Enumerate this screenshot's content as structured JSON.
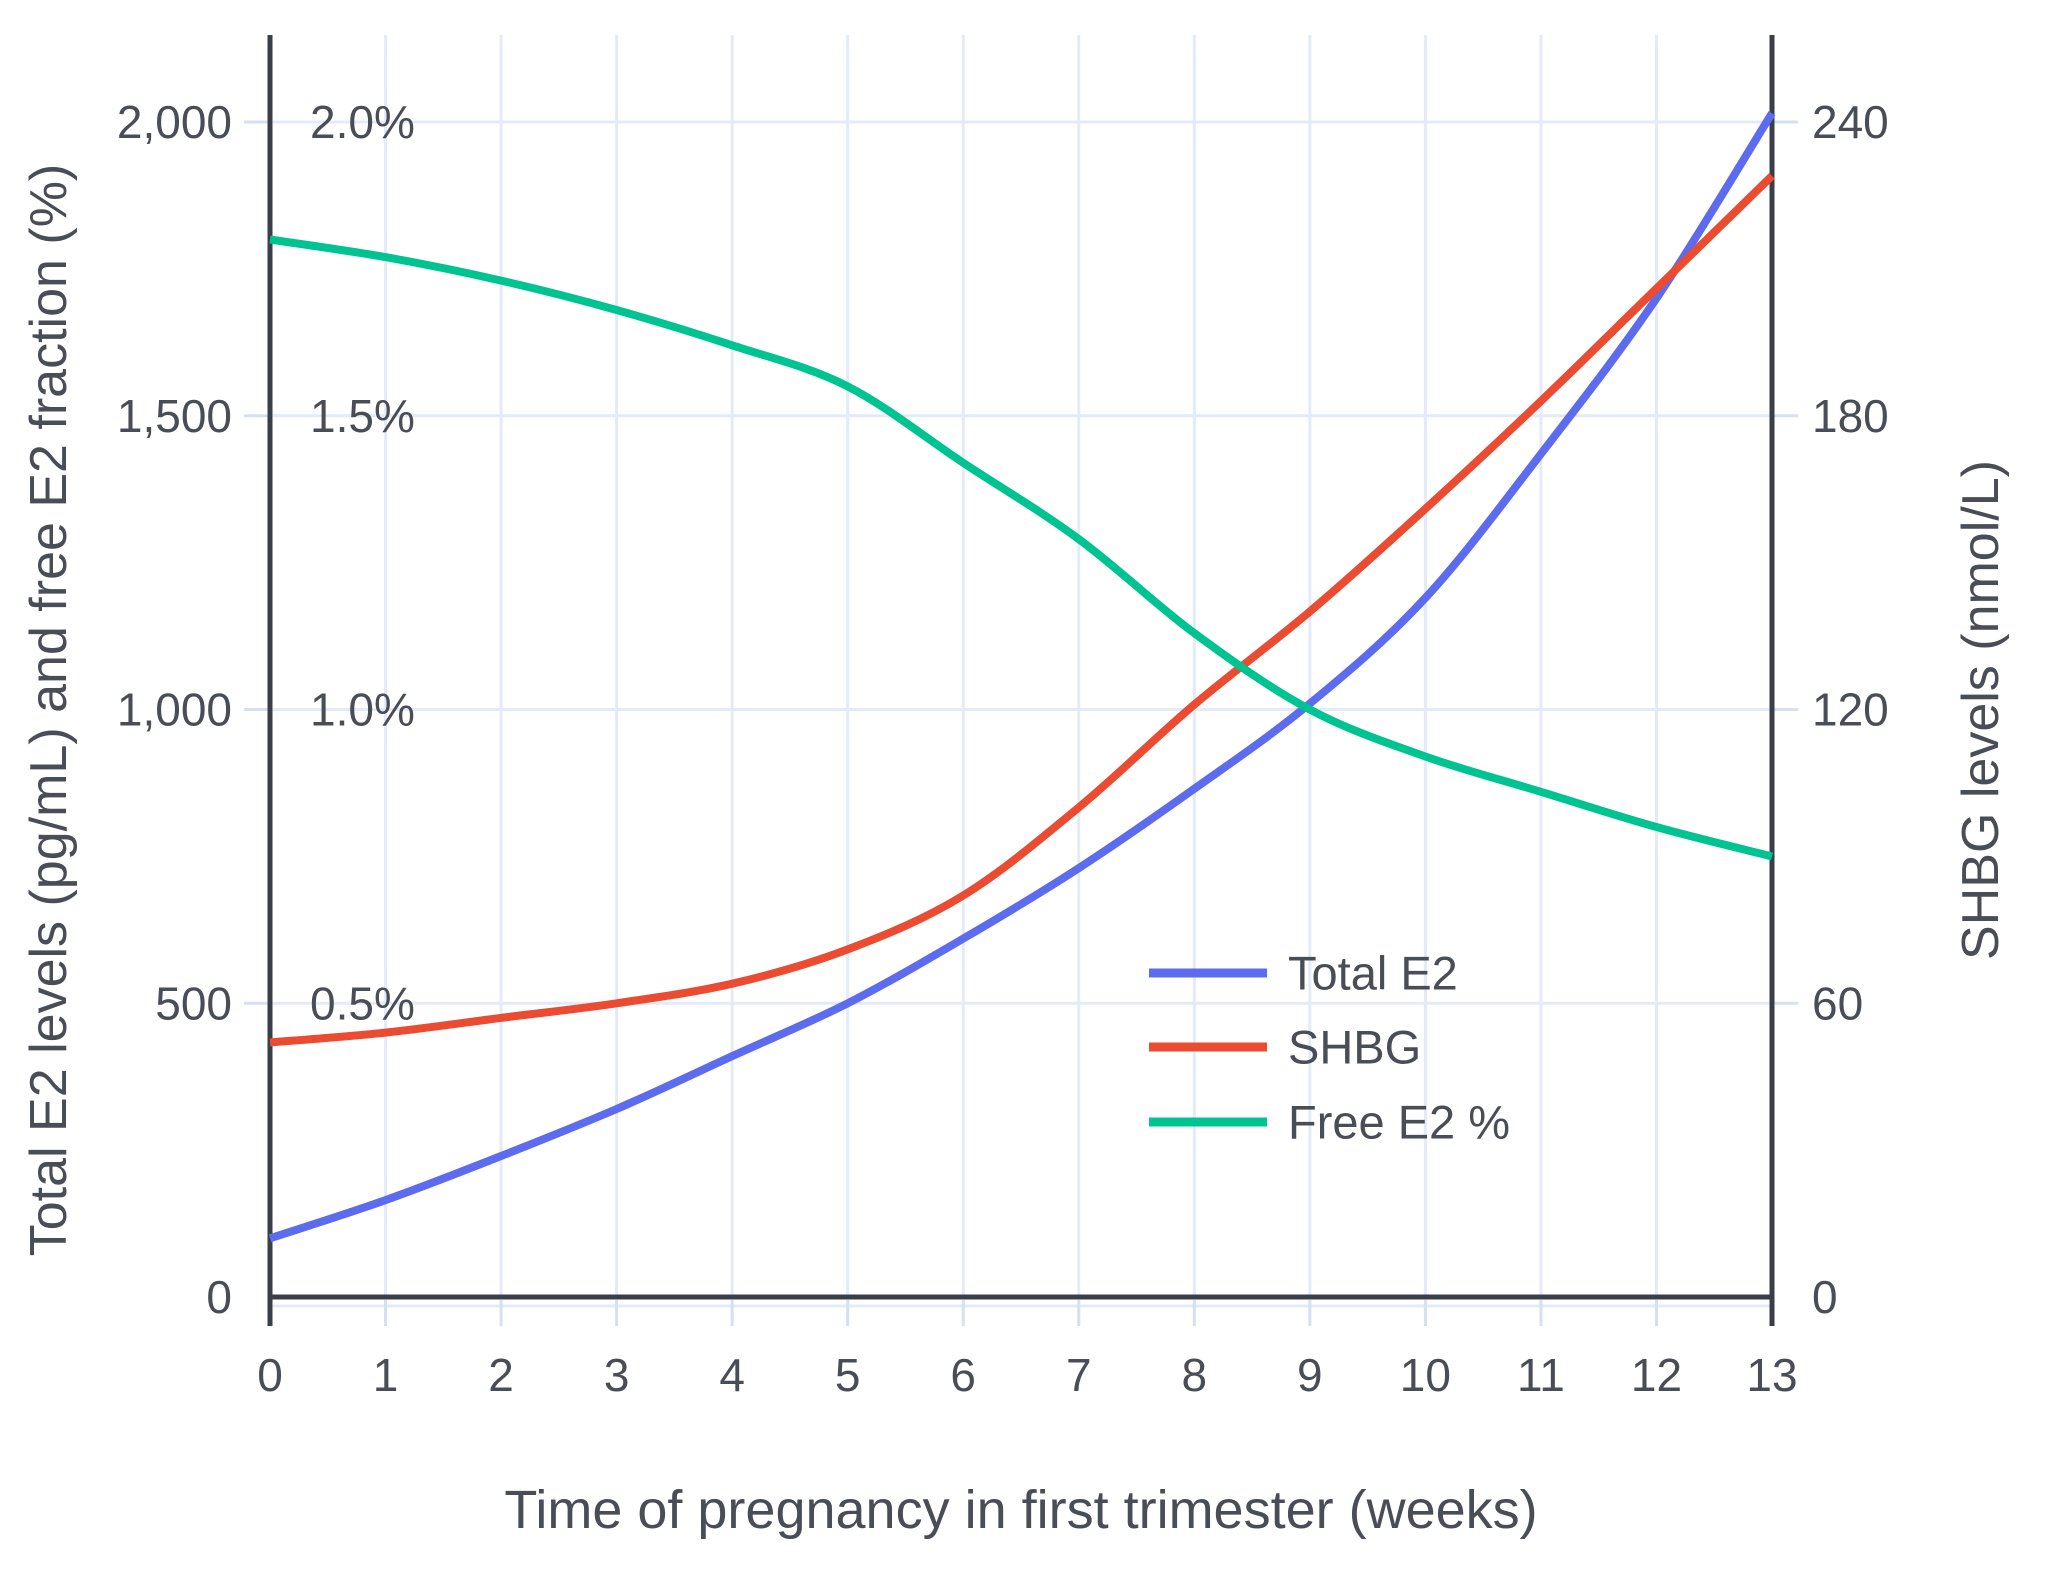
{
  "chart_data": {
    "type": "line",
    "title": "",
    "x_axis": {
      "title": "Time of pregnancy in first trimester (weeks)",
      "tick_labels": [
        "0",
        "1",
        "2",
        "3",
        "4",
        "5",
        "6",
        "7",
        "8",
        "9",
        "10",
        "11",
        "12",
        "13"
      ],
      "range": [
        0,
        13
      ]
    },
    "left_axis": {
      "title": "Total E2 levels (pg/mL) and free E2 fraction (%)",
      "ticks": [
        {
          "label": "0",
          "value": 0
        },
        {
          "label": "500",
          "value": 500
        },
        {
          "label": "1,000",
          "value": 1000
        },
        {
          "label": "1,500",
          "value": 1500
        },
        {
          "label": "2,000",
          "value": 2000
        }
      ],
      "range": [
        0,
        2148
      ]
    },
    "right_axis": {
      "title": "SHBG levels (nmol/L)",
      "ticks": [
        {
          "label": "0",
          "value": 0
        },
        {
          "label": "60",
          "value": 60
        },
        {
          "label": "120",
          "value": 120
        },
        {
          "label": "180",
          "value": 180
        },
        {
          "label": "240",
          "value": 240
        }
      ],
      "range": [
        0,
        258
      ]
    },
    "percent_labels": [
      {
        "label": "0.5%",
        "value": 500
      },
      {
        "label": "1.0%",
        "value": 1000
      },
      {
        "label": "1.5%",
        "value": 1500
      },
      {
        "label": "2.0%",
        "value": 2000
      }
    ],
    "weeks": [
      0,
      1,
      2,
      3,
      4,
      5,
      6,
      7,
      8,
      9,
      10,
      11,
      12,
      13
    ],
    "series": [
      {
        "name": "Total E2",
        "axis": "left",
        "unit": "pg/mL",
        "color": "#5D6CEF",
        "values": [
          100,
          165,
          240,
          320,
          410,
          500,
          610,
          730,
          865,
          1010,
          1190,
          1435,
          1700,
          2015
        ]
      },
      {
        "name": "SHBG",
        "axis": "right",
        "unit": "nmol/L",
        "color": "#EA4B31",
        "values": [
          52,
          54,
          57,
          60,
          64,
          71,
          82,
          100,
          121,
          140,
          161,
          183,
          206,
          229
        ]
      },
      {
        "name": "Free E2 %",
        "axis": "left-percent",
        "unit": "%",
        "values_note": "plotted on left axis where 0.1% = 100 units",
        "color": "#00C392",
        "values": [
          1.8,
          1.77,
          1.73,
          1.68,
          1.62,
          1.55,
          1.42,
          1.29,
          1.13,
          1.0,
          0.92,
          0.86,
          0.8,
          0.75
        ]
      }
    ],
    "legend": {
      "position": "inside-bottom-right",
      "entries": [
        "Total E2",
        "SHBG",
        "Free E2 %"
      ]
    },
    "grid": true
  },
  "colors": {
    "background": "#FFFFFF",
    "grid": "#E4EBF7",
    "tick": "#D5E0F0",
    "axis_line": "#3A3E48",
    "text": "#494D56"
  }
}
